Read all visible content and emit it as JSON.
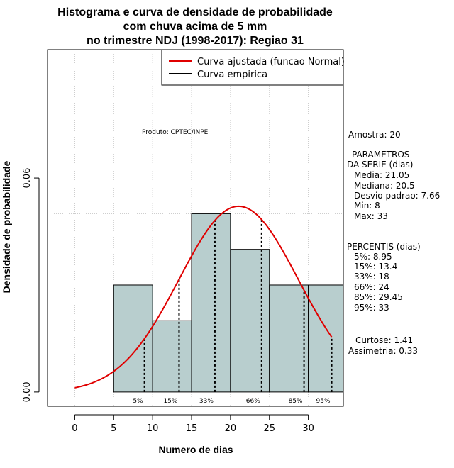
{
  "chart_data": {
    "type": "bar",
    "title_lines": [
      "Histograma e curva de densidade de probabilidade",
      "com chuva acima de 5 mm",
      "no trimestre NDJ (1998-2017): Regiao 31"
    ],
    "xlabel": "Numero de dias",
    "ylabel": "Densidade de probabilidade",
    "xlim": [
      -3.5,
      34.5
    ],
    "ylim": [
      -0.004,
      0.096
    ],
    "x_ticks": [
      0,
      5,
      10,
      15,
      20,
      25,
      30
    ],
    "y_ticks": [
      {
        "value": 0.0,
        "label": "0.00"
      },
      {
        "value": 0.06,
        "label": "0.06"
      }
    ],
    "grid": true,
    "bins": [
      {
        "start": 5,
        "end": 10,
        "density": 0.03
      },
      {
        "start": 10,
        "end": 15,
        "density": 0.02
      },
      {
        "start": 15,
        "end": 20,
        "density": 0.05
      },
      {
        "start": 20,
        "end": 25,
        "density": 0.04
      },
      {
        "start": 25,
        "end": 30,
        "density": 0.03
      },
      {
        "start": 30,
        "end": 35,
        "density": 0.03
      }
    ],
    "bar_color": "#b8cece",
    "normal_curve": {
      "mean": 21.05,
      "sd": 7.66,
      "x_from": 0,
      "x_to": 33,
      "color": "#e00000"
    },
    "percentiles": [
      {
        "label": "5%",
        "x": 8.95
      },
      {
        "label": "15%",
        "x": 13.4
      },
      {
        "label": "33%",
        "x": 18
      },
      {
        "label": "66%",
        "x": 24
      },
      {
        "label": "85%",
        "x": 29.45
      },
      {
        "label": "95%",
        "x": 33
      }
    ],
    "legend": {
      "position": "top-right",
      "entries": [
        {
          "label": "Curva ajustada (funcao Normal)",
          "color": "#e00000"
        },
        {
          "label": "Curva empirica",
          "color": "#000000"
        }
      ]
    },
    "product_label": "Produto: CPTEC/INPE"
  },
  "side_panel": {
    "amostra": "Amostra: 20",
    "param_title_1": "PARAMETROS",
    "param_title_2": "DA SERIE (dias)",
    "params": [
      "Media: 21.05",
      "Mediana: 20.5",
      "Desvio padrao: 7.66",
      "Min: 8",
      "Max: 33"
    ],
    "percentis_title": "PERCENTIS (dias)",
    "percentis": [
      "5%: 8.95",
      "15%: 13.4",
      "33%: 18",
      "66%: 24",
      "85%: 29.45",
      "95%: 33"
    ],
    "curtose": "Curtose: 1.41",
    "assimetria": "Assimetria: 0.33"
  }
}
